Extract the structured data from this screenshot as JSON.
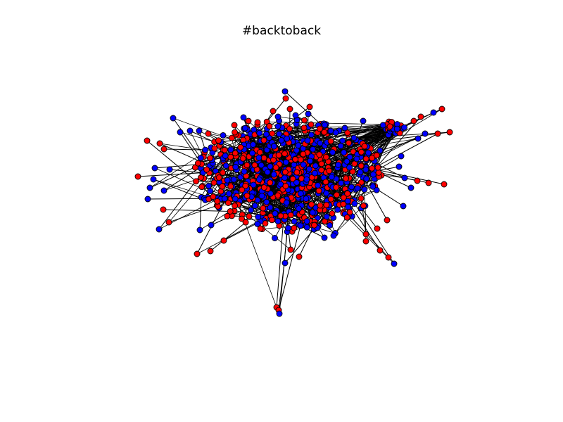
{
  "title": "#backtoback",
  "graph": {
    "colors": {
      "group_a_fill": "#0000ff",
      "group_b_fill": "#ff0000",
      "node_stroke": "#000000",
      "edge": "#000000"
    }
  }
}
